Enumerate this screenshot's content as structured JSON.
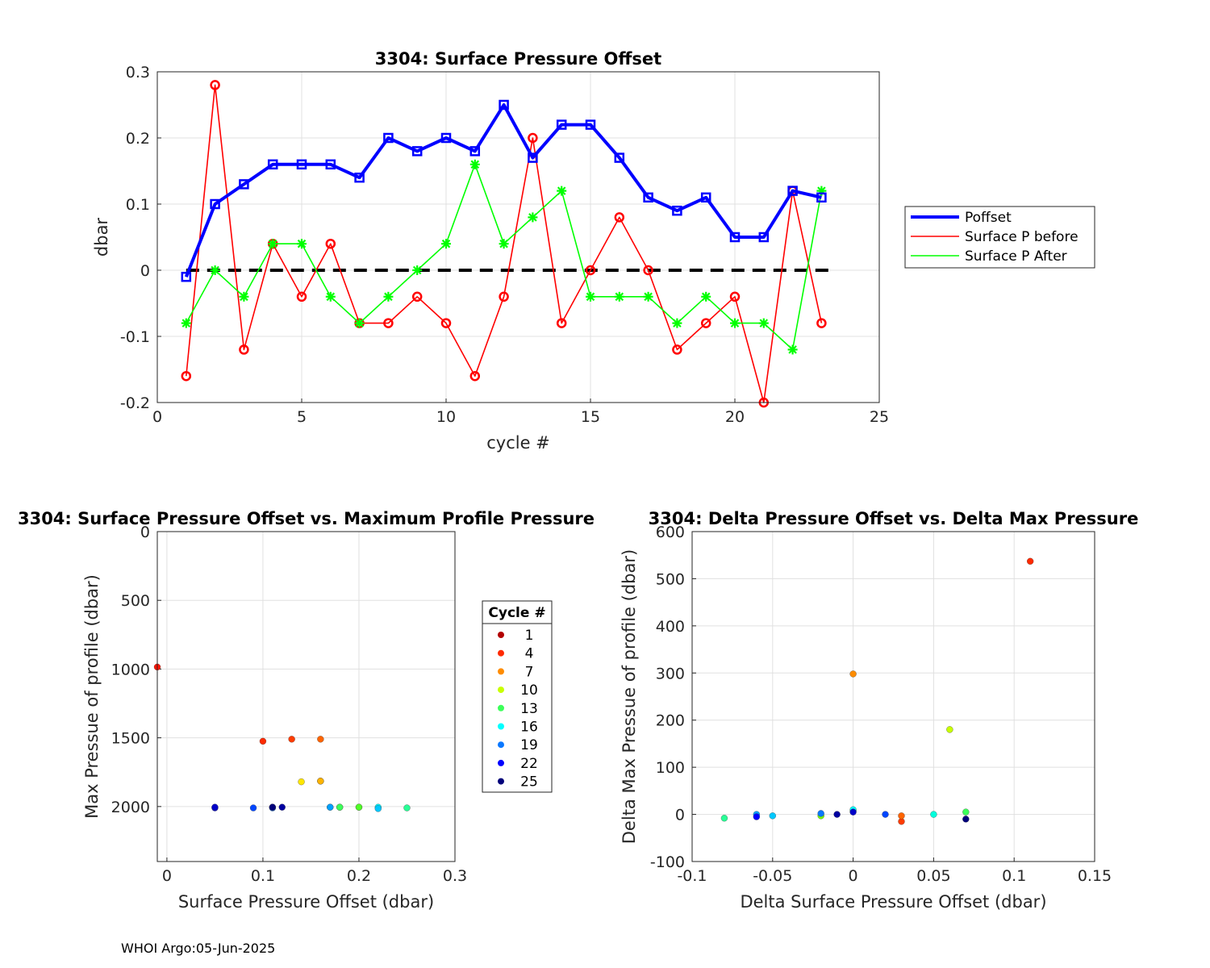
{
  "footer": "WHOI Argo:05-Jun-2025",
  "chart_data": [
    {
      "type": "line",
      "title": "3304: Surface Pressure Offset",
      "xlabel": "cycle #",
      "ylabel": "dbar",
      "xlim": [
        0,
        25
      ],
      "ylim": [
        -0.2,
        0.3
      ],
      "xticks": [
        "0",
        "5",
        "10",
        "15",
        "20",
        "25"
      ],
      "yticks": [
        "-0.2",
        "-0.1",
        "0",
        "0.1",
        "0.2",
        "0.3"
      ],
      "grid": true,
      "legend_position": "outside-right",
      "reference_line": {
        "y": 0,
        "style": "dashed",
        "color": "#000000"
      },
      "x": [
        1,
        2,
        3,
        4,
        5,
        6,
        7,
        8,
        9,
        10,
        11,
        12,
        13,
        14,
        15,
        16,
        17,
        18,
        19,
        20,
        21,
        22,
        23
      ],
      "series": [
        {
          "name": "Poffset",
          "color": "#0000ff",
          "marker": "square",
          "values": [
            -0.01,
            0.1,
            0.13,
            0.16,
            0.16,
            0.16,
            0.14,
            0.2,
            0.18,
            0.2,
            0.18,
            0.25,
            0.17,
            0.22,
            0.22,
            0.17,
            0.11,
            0.09,
            0.11,
            0.05,
            0.05,
            0.12,
            0.11
          ]
        },
        {
          "name": "Surface P before",
          "color": "#ff0000",
          "marker": "circle",
          "values": [
            -0.16,
            0.28,
            -0.12,
            0.04,
            -0.04,
            0.04,
            -0.08,
            -0.08,
            -0.04,
            -0.08,
            -0.16,
            -0.04,
            0.2,
            -0.08,
            0.0,
            0.08,
            0.0,
            -0.12,
            -0.08,
            -0.04,
            -0.2,
            0.12,
            -0.08
          ]
        },
        {
          "name": "Surface P After",
          "color": "#00ff00",
          "marker": "star",
          "values": [
            -0.08,
            0.0,
            -0.04,
            0.04,
            0.04,
            -0.04,
            -0.08,
            -0.04,
            0.0,
            0.04,
            0.16,
            0.04,
            0.08,
            0.12,
            -0.04,
            -0.04,
            -0.04,
            -0.08,
            -0.04,
            -0.08,
            -0.08,
            -0.12,
            0.12
          ]
        }
      ]
    },
    {
      "type": "scatter",
      "title": "3304: Surface Pressure Offset vs. Maximum Profile Pressure",
      "xlabel": "Surface Pressure Offset (dbar)",
      "ylabel": "Max Pressue of profile (dbar)",
      "xlim": [
        -0.01,
        0.3
      ],
      "ylim": [
        0,
        2400
      ],
      "y_reversed": true,
      "xticks": [
        "0",
        "0.1",
        "0.2",
        "0.3"
      ],
      "yticks": [
        "0",
        "500",
        "1000",
        "1500",
        "2000"
      ],
      "grid": true,
      "legend_title": "Cycle #",
      "legend_entries": [
        {
          "label": "1",
          "color": "#b20000"
        },
        {
          "label": "4",
          "color": "#ff2a00"
        },
        {
          "label": "7",
          "color": "#ff8c00"
        },
        {
          "label": "10",
          "color": "#c8ff00"
        },
        {
          "label": "13",
          "color": "#3cff5a"
        },
        {
          "label": "16",
          "color": "#00ffff"
        },
        {
          "label": "19",
          "color": "#0a78ff"
        },
        {
          "label": "22",
          "color": "#0000ff"
        },
        {
          "label": "25",
          "color": "#00007a"
        }
      ],
      "points": [
        {
          "cycle": 1,
          "x": -0.01,
          "y": 985,
          "color": "#ff1400"
        },
        {
          "cycle": 2,
          "x": 0.1,
          "y": 1525,
          "color": "#ff2a00"
        },
        {
          "cycle": 3,
          "x": 0.13,
          "y": 1510,
          "color": "#ff3c00"
        },
        {
          "cycle": 4,
          "x": 0.16,
          "y": 1510,
          "color": "#ff6400"
        },
        {
          "cycle": 5,
          "x": 0.16,
          "y": 1815,
          "color": "#ff8c00"
        },
        {
          "cycle": 6,
          "x": 0.16,
          "y": 1815,
          "color": "#ffb400"
        },
        {
          "cycle": 7,
          "x": 0.14,
          "y": 1820,
          "color": "#ffe600"
        },
        {
          "cycle": 8,
          "x": 0.2,
          "y": 2005,
          "color": "#c8ff00"
        },
        {
          "cycle": 9,
          "x": 0.18,
          "y": 2005,
          "color": "#78ff00"
        },
        {
          "cycle": 10,
          "x": 0.2,
          "y": 2005,
          "color": "#50ff28"
        },
        {
          "cycle": 11,
          "x": 0.18,
          "y": 2005,
          "color": "#3cff5a"
        },
        {
          "cycle": 12,
          "x": 0.25,
          "y": 2010,
          "color": "#28ff96"
        },
        {
          "cycle": 13,
          "x": 0.17,
          "y": 2005,
          "color": "#00ffdc"
        },
        {
          "cycle": 14,
          "x": 0.22,
          "y": 2005,
          "color": "#00ffff"
        },
        {
          "cycle": 15,
          "x": 0.22,
          "y": 2015,
          "color": "#00c8ff"
        },
        {
          "cycle": 16,
          "x": 0.17,
          "y": 2005,
          "color": "#00a0ff"
        },
        {
          "cycle": 17,
          "x": 0.11,
          "y": 2010,
          "color": "#0a78ff"
        },
        {
          "cycle": 18,
          "x": 0.09,
          "y": 2010,
          "color": "#0046ff"
        },
        {
          "cycle": 19,
          "x": 0.11,
          "y": 2005,
          "color": "#0000ff"
        },
        {
          "cycle": 20,
          "x": 0.05,
          "y": 2010,
          "color": "#0000e6"
        },
        {
          "cycle": 21,
          "x": 0.05,
          "y": 2005,
          "color": "#0000c8"
        },
        {
          "cycle": 22,
          "x": 0.12,
          "y": 2005,
          "color": "#0000a0"
        },
        {
          "cycle": 23,
          "x": 0.11,
          "y": 2005,
          "color": "#00007a"
        }
      ]
    },
    {
      "type": "scatter",
      "title": "3304: Delta Pressure Offset vs. Delta Max Pressure",
      "xlabel": "Delta Surface Pressure Offset (dbar)",
      "ylabel": "Delta Max Pressue of profile (dbar)",
      "xlim": [
        -0.1,
        0.15
      ],
      "ylim": [
        -100,
        600
      ],
      "xticks": [
        "-0.1",
        "-0.05",
        "0",
        "0.05",
        "0.1",
        "0.15"
      ],
      "yticks": [
        "-100",
        "0",
        "100",
        "200",
        "300",
        "400",
        "500",
        "600"
      ],
      "grid": true,
      "points": [
        {
          "x": 0.11,
          "y": 537,
          "color": "#ff2a00"
        },
        {
          "x": 0.03,
          "y": -15,
          "color": "#ff3c00"
        },
        {
          "x": 0.03,
          "y": -3,
          "color": "#ff6400"
        },
        {
          "x": 0.0,
          "y": 298,
          "color": "#ff8c00"
        },
        {
          "x": 0.06,
          "y": 180,
          "color": "#c8ff00"
        },
        {
          "x": -0.02,
          "y": -3,
          "color": "#78ff00"
        },
        {
          "x": 0.0,
          "y": 8,
          "color": "#50ff28"
        },
        {
          "x": 0.07,
          "y": 5,
          "color": "#3cff5a"
        },
        {
          "x": -0.08,
          "y": -8,
          "color": "#28ff96"
        },
        {
          "x": 0.05,
          "y": 0,
          "color": "#00ffdc"
        },
        {
          "x": 0.0,
          "y": 10,
          "color": "#00ffff"
        },
        {
          "x": -0.05,
          "y": -3,
          "color": "#00c8ff"
        },
        {
          "x": -0.06,
          "y": 0,
          "color": "#00a0ff"
        },
        {
          "x": -0.02,
          "y": 2,
          "color": "#0a78ff"
        },
        {
          "x": 0.02,
          "y": 0,
          "color": "#0046ff"
        },
        {
          "x": -0.06,
          "y": -5,
          "color": "#0000ff"
        },
        {
          "x": 0.0,
          "y": 5,
          "color": "#0000c8"
        },
        {
          "x": -0.01,
          "y": 0,
          "color": "#0000a0"
        },
        {
          "x": 0.07,
          "y": -10,
          "color": "#00007a"
        }
      ]
    }
  ]
}
